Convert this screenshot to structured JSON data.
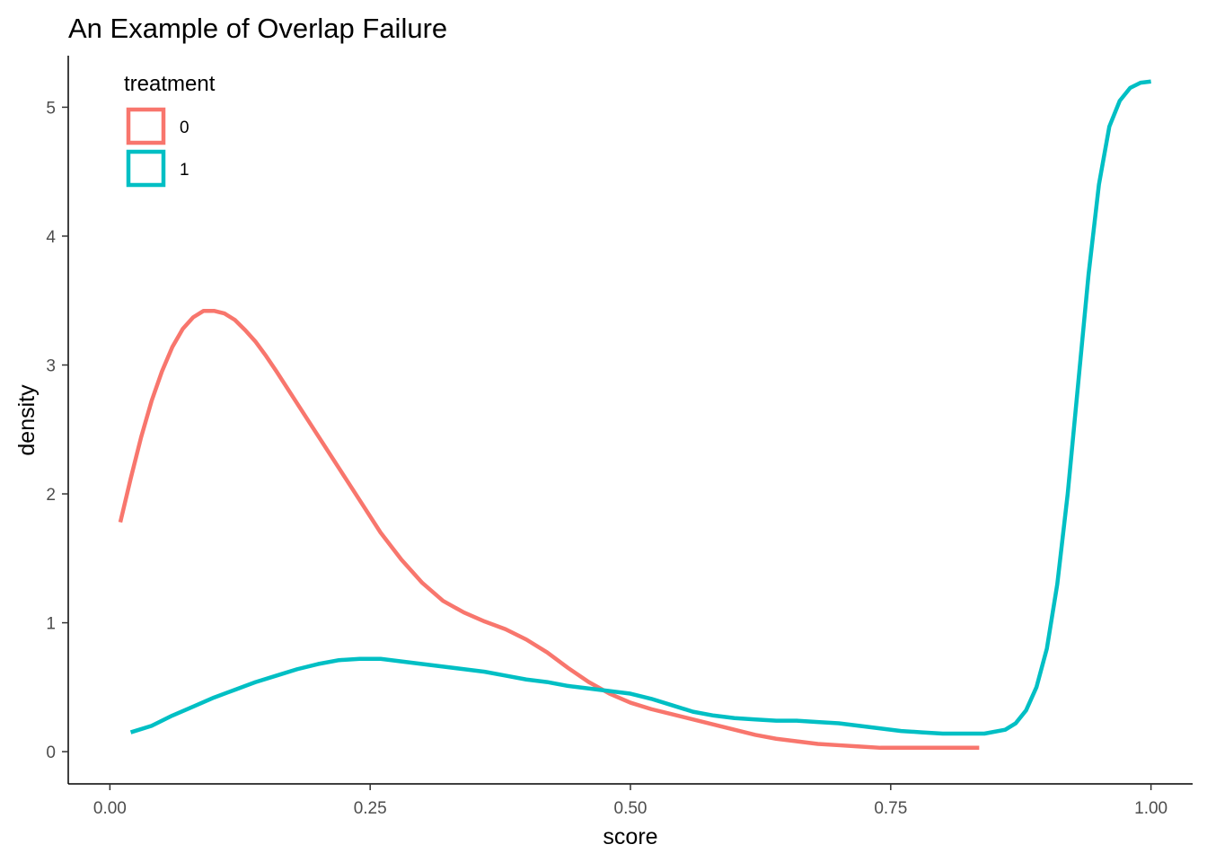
{
  "chart_data": {
    "type": "line",
    "title": "An Example of Overlap Failure",
    "xlabel": "score",
    "ylabel": "density",
    "xlim": [
      -0.04,
      1.04
    ],
    "ylim": [
      -0.25,
      5.4
    ],
    "x_ticks": [
      0.0,
      0.25,
      0.5,
      0.75,
      1.0
    ],
    "x_tick_labels": [
      "0.00",
      "0.25",
      "0.50",
      "0.75",
      "1.00"
    ],
    "y_ticks": [
      0,
      1,
      2,
      3,
      4,
      5
    ],
    "y_tick_labels": [
      "0",
      "1",
      "2",
      "3",
      "4",
      "5"
    ],
    "grid": false,
    "legend": {
      "title": "treatment",
      "placement": "top-left-inside",
      "entries": [
        {
          "label": "0",
          "color": "#F8766D"
        },
        {
          "label": "1",
          "color": "#00BFC4"
        }
      ]
    },
    "series": [
      {
        "name": "0",
        "color": "#F8766D",
        "points": [
          [
            0.01,
            1.78
          ],
          [
            0.02,
            2.12
          ],
          [
            0.03,
            2.44
          ],
          [
            0.04,
            2.72
          ],
          [
            0.05,
            2.95
          ],
          [
            0.06,
            3.14
          ],
          [
            0.07,
            3.28
          ],
          [
            0.08,
            3.37
          ],
          [
            0.09,
            3.42
          ],
          [
            0.1,
            3.42
          ],
          [
            0.11,
            3.4
          ],
          [
            0.12,
            3.35
          ],
          [
            0.13,
            3.27
          ],
          [
            0.14,
            3.18
          ],
          [
            0.15,
            3.07
          ],
          [
            0.16,
            2.95
          ],
          [
            0.18,
            2.7
          ],
          [
            0.2,
            2.45
          ],
          [
            0.22,
            2.2
          ],
          [
            0.24,
            1.95
          ],
          [
            0.26,
            1.7
          ],
          [
            0.28,
            1.49
          ],
          [
            0.3,
            1.31
          ],
          [
            0.32,
            1.17
          ],
          [
            0.34,
            1.08
          ],
          [
            0.36,
            1.01
          ],
          [
            0.38,
            0.95
          ],
          [
            0.4,
            0.87
          ],
          [
            0.42,
            0.77
          ],
          [
            0.44,
            0.65
          ],
          [
            0.46,
            0.54
          ],
          [
            0.48,
            0.45
          ],
          [
            0.5,
            0.38
          ],
          [
            0.52,
            0.33
          ],
          [
            0.54,
            0.29
          ],
          [
            0.56,
            0.25
          ],
          [
            0.58,
            0.21
          ],
          [
            0.6,
            0.17
          ],
          [
            0.62,
            0.13
          ],
          [
            0.64,
            0.1
          ],
          [
            0.66,
            0.08
          ],
          [
            0.68,
            0.06
          ],
          [
            0.7,
            0.05
          ],
          [
            0.72,
            0.04
          ],
          [
            0.74,
            0.03
          ],
          [
            0.76,
            0.03
          ],
          [
            0.78,
            0.03
          ],
          [
            0.8,
            0.03
          ],
          [
            0.82,
            0.03
          ],
          [
            0.835,
            0.03
          ]
        ]
      },
      {
        "name": "1",
        "color": "#00BFC4",
        "points": [
          [
            0.02,
            0.15
          ],
          [
            0.04,
            0.2
          ],
          [
            0.06,
            0.28
          ],
          [
            0.08,
            0.35
          ],
          [
            0.1,
            0.42
          ],
          [
            0.12,
            0.48
          ],
          [
            0.14,
            0.54
          ],
          [
            0.16,
            0.59
          ],
          [
            0.18,
            0.64
          ],
          [
            0.2,
            0.68
          ],
          [
            0.22,
            0.71
          ],
          [
            0.24,
            0.72
          ],
          [
            0.26,
            0.72
          ],
          [
            0.28,
            0.7
          ],
          [
            0.3,
            0.68
          ],
          [
            0.32,
            0.66
          ],
          [
            0.34,
            0.64
          ],
          [
            0.36,
            0.62
          ],
          [
            0.38,
            0.59
          ],
          [
            0.4,
            0.56
          ],
          [
            0.42,
            0.54
          ],
          [
            0.44,
            0.51
          ],
          [
            0.46,
            0.49
          ],
          [
            0.48,
            0.47
          ],
          [
            0.5,
            0.45
          ],
          [
            0.52,
            0.41
          ],
          [
            0.54,
            0.36
          ],
          [
            0.56,
            0.31
          ],
          [
            0.58,
            0.28
          ],
          [
            0.6,
            0.26
          ],
          [
            0.62,
            0.25
          ],
          [
            0.64,
            0.24
          ],
          [
            0.66,
            0.24
          ],
          [
            0.68,
            0.23
          ],
          [
            0.7,
            0.22
          ],
          [
            0.72,
            0.2
          ],
          [
            0.74,
            0.18
          ],
          [
            0.76,
            0.16
          ],
          [
            0.78,
            0.15
          ],
          [
            0.8,
            0.14
          ],
          [
            0.82,
            0.14
          ],
          [
            0.84,
            0.14
          ],
          [
            0.86,
            0.17
          ],
          [
            0.87,
            0.22
          ],
          [
            0.88,
            0.32
          ],
          [
            0.89,
            0.5
          ],
          [
            0.9,
            0.8
          ],
          [
            0.91,
            1.3
          ],
          [
            0.92,
            2.0
          ],
          [
            0.93,
            2.85
          ],
          [
            0.94,
            3.7
          ],
          [
            0.95,
            4.4
          ],
          [
            0.96,
            4.85
          ],
          [
            0.97,
            5.05
          ],
          [
            0.98,
            5.15
          ],
          [
            0.99,
            5.19
          ],
          [
            1.0,
            5.2
          ]
        ]
      }
    ]
  }
}
